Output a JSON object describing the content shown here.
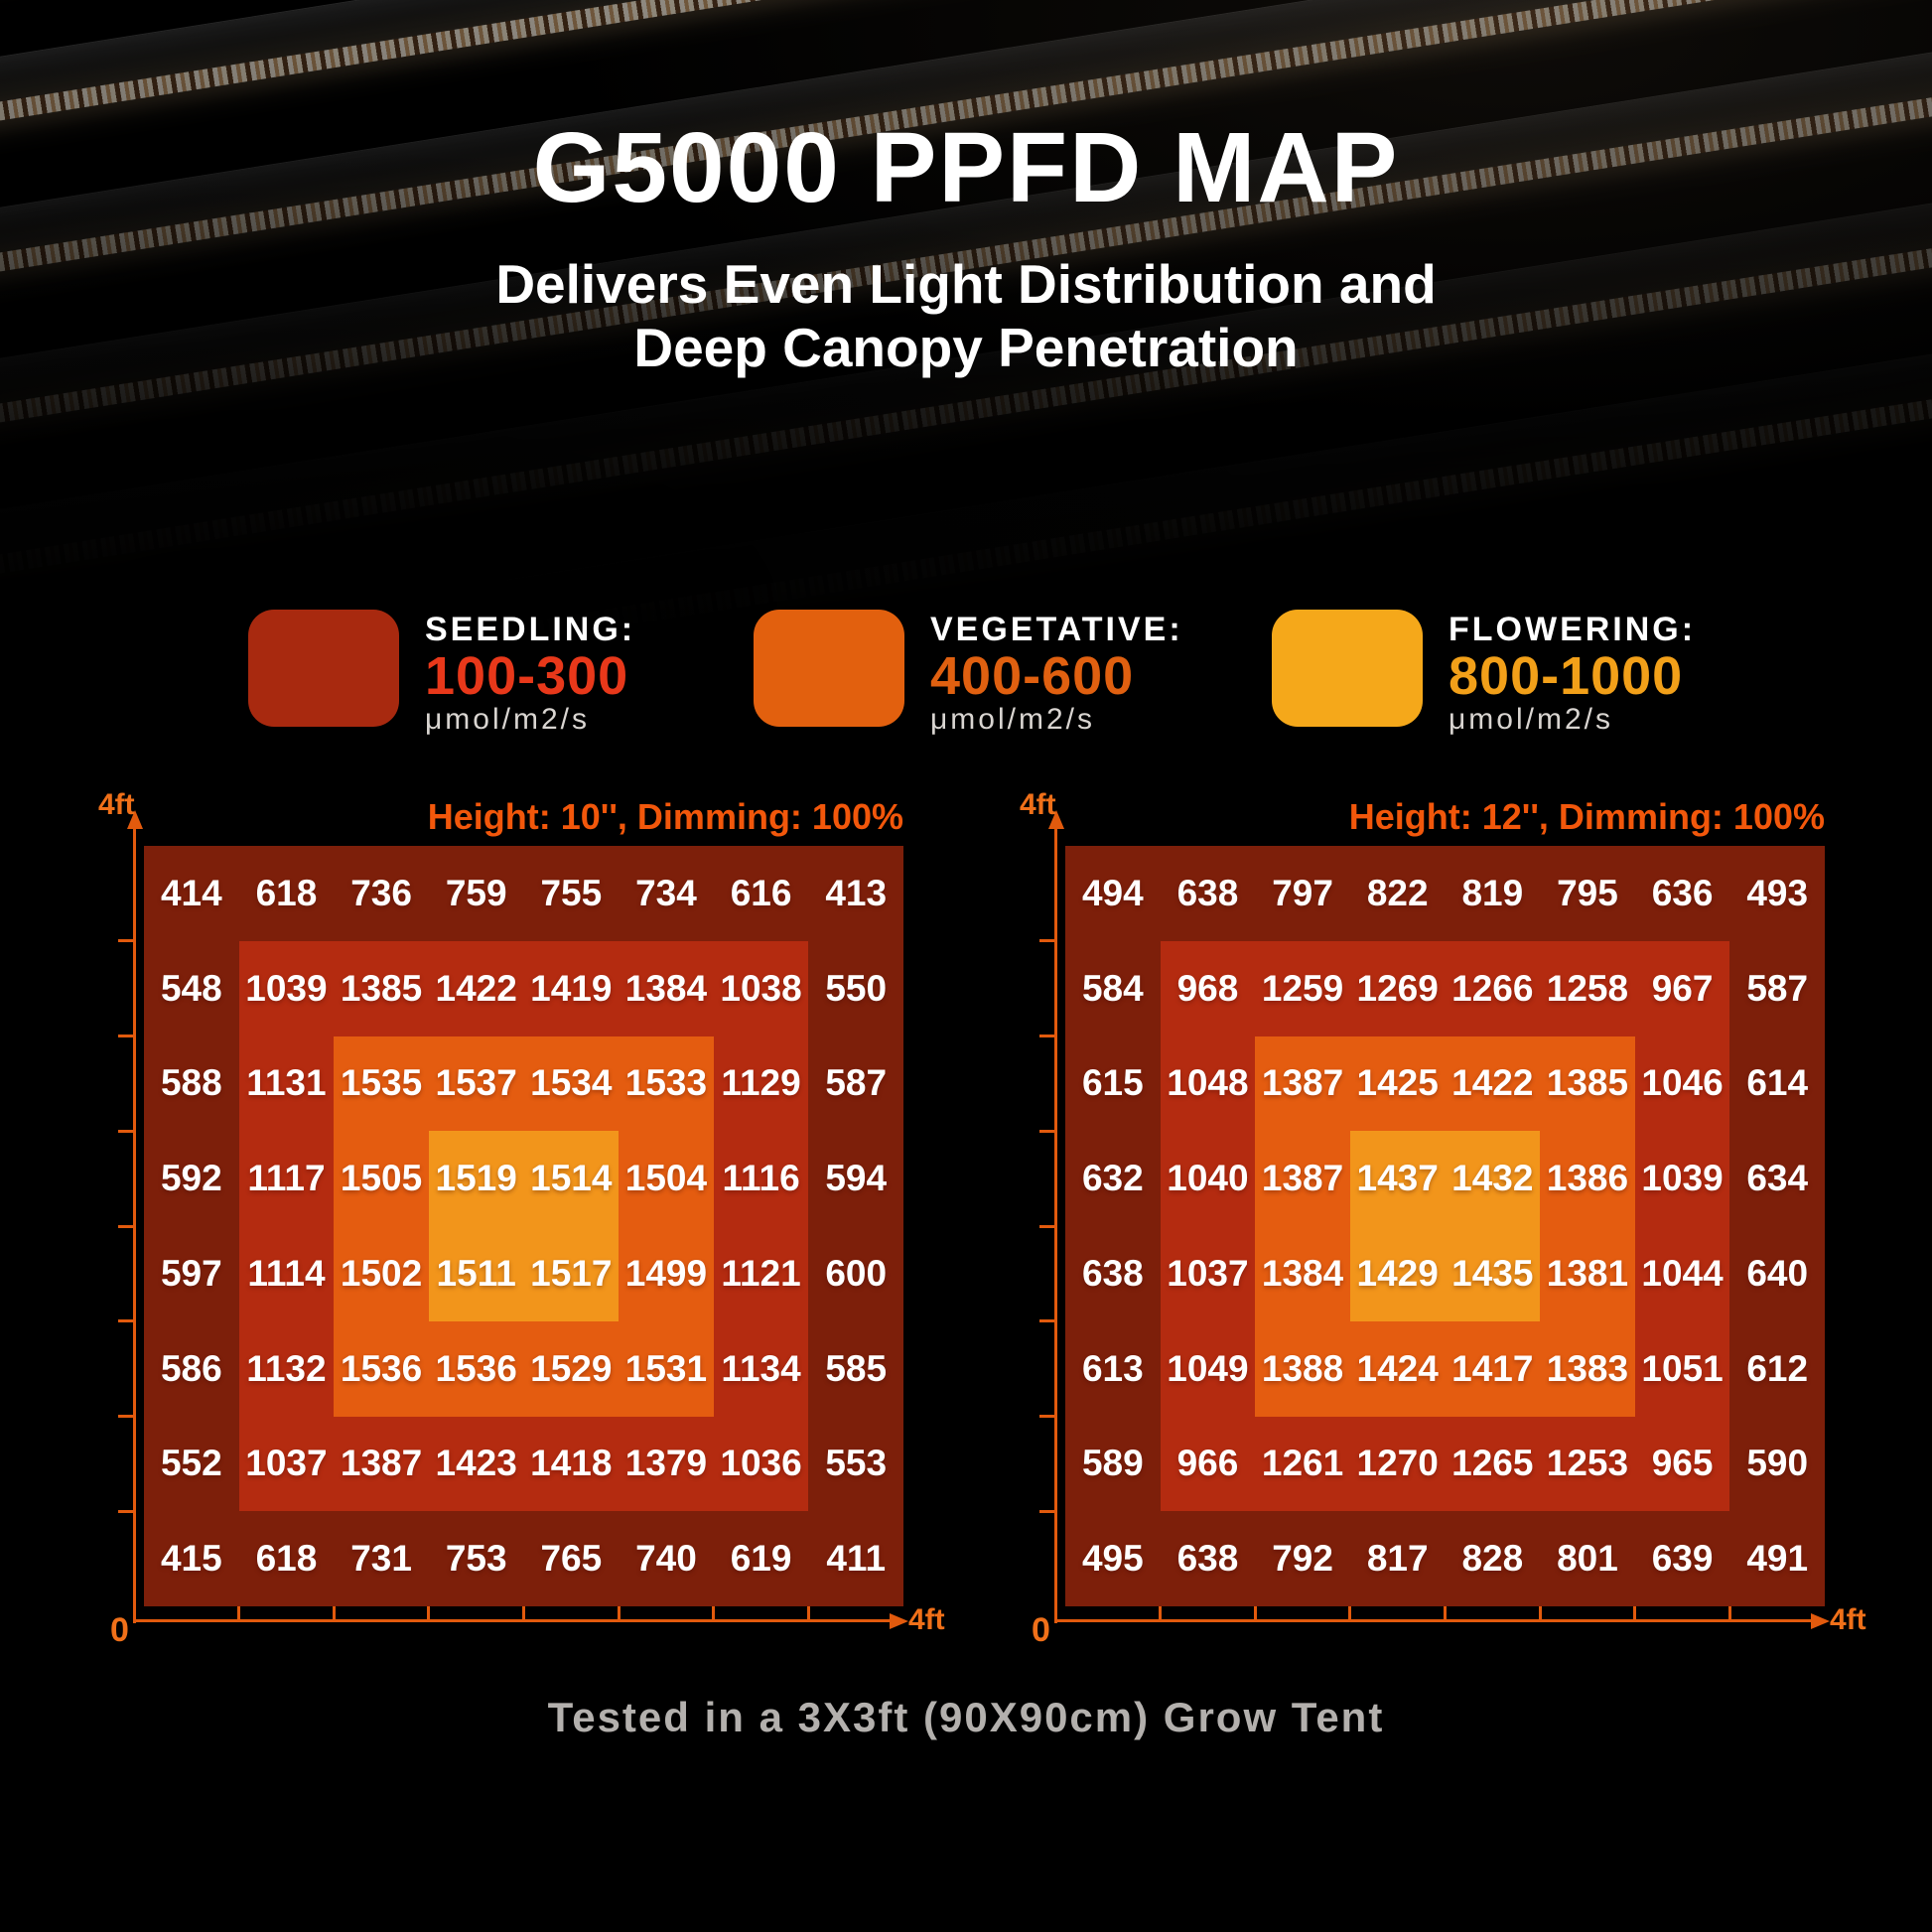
{
  "title": "G5000 PPFD MAP",
  "subtitle_line1": "Delivers Even Light Distribution and",
  "subtitle_line2": "Deep Canopy Penetration",
  "legend": {
    "items": [
      {
        "label": "SEEDLING:",
        "range": "100-300",
        "unit": "μmol/m2/s",
        "swatch_color": "#A8290F",
        "range_color": "#E8381A"
      },
      {
        "label": "VEGETATIVE:",
        "range": "400-600",
        "unit": "μmol/m2/s",
        "swatch_color": "#E2600E",
        "range_color": "#E06010"
      },
      {
        "label": "FLOWERING:",
        "range": "800-1000",
        "unit": "μmol/m2/s",
        "swatch_color": "#F5A81A",
        "range_color": "#F2A019"
      }
    ]
  },
  "maps": [
    {
      "header": "Height: 10'', Dimming: 100%",
      "y_axis_label": "4ft",
      "origin_label": "0",
      "x_axis_label": "4ft"
    },
    {
      "header": "Height: 12'', Dimming: 100%",
      "y_axis_label": "4ft",
      "origin_label": "0",
      "x_axis_label": "4ft"
    }
  ],
  "colors": {
    "rings": [
      "#7D1F0A",
      "#B42B10",
      "#E45C10",
      "#F2951B"
    ],
    "axis": "#E25A0D",
    "header": "#F2570B"
  },
  "caption": "Tested in a 3X3ft (90X90cm) Grow Tent",
  "chart_data": [
    {
      "type": "heatmap",
      "title": "Height: 10'', Dimming: 100%",
      "unit": "μmol/m2/s",
      "x_axis": {
        "min_label": "0",
        "max_label": "4ft"
      },
      "y_axis": {
        "max_label": "4ft"
      },
      "grid": false,
      "zones": "concentric squares 8x8 / 6x6 / 4x4 / 2x2 colored #7D1F0A, #B42B10, #E45C10, #F2951B",
      "values": [
        [
          414,
          618,
          736,
          759,
          755,
          734,
          616,
          413
        ],
        [
          548,
          1039,
          1385,
          1422,
          1419,
          1384,
          1038,
          550
        ],
        [
          588,
          1131,
          1535,
          1537,
          1534,
          1533,
          1129,
          587
        ],
        [
          592,
          1117,
          1505,
          1519,
          1514,
          1504,
          1116,
          594
        ],
        [
          597,
          1114,
          1502,
          1511,
          1517,
          1499,
          1121,
          600
        ],
        [
          586,
          1132,
          1536,
          1536,
          1529,
          1531,
          1134,
          585
        ],
        [
          552,
          1037,
          1387,
          1423,
          1418,
          1379,
          1036,
          553
        ],
        [
          415,
          618,
          731,
          753,
          765,
          740,
          619,
          411
        ]
      ]
    },
    {
      "type": "heatmap",
      "title": "Height: 12'', Dimming: 100%",
      "unit": "μmol/m2/s",
      "x_axis": {
        "min_label": "0",
        "max_label": "4ft"
      },
      "y_axis": {
        "max_label": "4ft"
      },
      "grid": false,
      "zones": "concentric squares 8x8 / 6x6 / 4x4 / 2x2 colored #7D1F0A, #B42B10, #E45C10, #F2951B",
      "values": [
        [
          494,
          638,
          797,
          822,
          819,
          795,
          636,
          493
        ],
        [
          584,
          968,
          1259,
          1269,
          1266,
          1258,
          967,
          587
        ],
        [
          615,
          1048,
          1387,
          1425,
          1422,
          1385,
          1046,
          614
        ],
        [
          632,
          1040,
          1387,
          1437,
          1432,
          1386,
          1039,
          634
        ],
        [
          638,
          1037,
          1384,
          1429,
          1435,
          1381,
          1044,
          640
        ],
        [
          613,
          1049,
          1388,
          1424,
          1417,
          1383,
          1051,
          612
        ],
        [
          589,
          966,
          1261,
          1270,
          1265,
          1253,
          965,
          590
        ],
        [
          495,
          638,
          792,
          817,
          828,
          801,
          639,
          491
        ]
      ]
    }
  ]
}
